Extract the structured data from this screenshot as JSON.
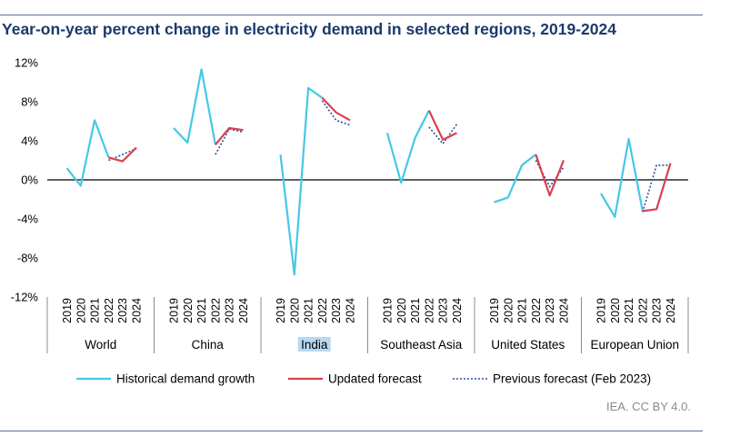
{
  "title": "Year-on-year percent change in electricity demand in selected regions, 2019-2024",
  "credit": "IEA. CC BY 4.0.",
  "colors": {
    "historical": "#45c8e6",
    "updated": "#d9414b",
    "previous": "#2c4fa3",
    "title": "#1b3a6b"
  },
  "chart_data": {
    "type": "line",
    "title": "Year-on-year percent change in electricity demand in selected regions, 2019-2024",
    "ylim": [
      -12,
      12
    ],
    "yticks": [
      "12%",
      "8%",
      "4%",
      "0%",
      "-4%",
      "-8%",
      "-12%"
    ],
    "years": [
      "2019",
      "2020",
      "2021",
      "2022",
      "2023",
      "2024"
    ],
    "highlighted_group": "India",
    "legend": [
      "Historical demand growth",
      "Updated forecast",
      "Previous forecast (Feb 2023)"
    ],
    "groups": [
      {
        "name": "World",
        "historical": [
          1.2,
          -0.6,
          6.1,
          2.3
        ],
        "updated": [
          2.3,
          1.9,
          3.3
        ],
        "previous": [
          2.0,
          2.6,
          3.2
        ]
      },
      {
        "name": "China",
        "historical": [
          5.3,
          3.8,
          11.3,
          3.6
        ],
        "updated": [
          3.6,
          5.3,
          5.1
        ],
        "previous": [
          2.6,
          5.2,
          4.9
        ]
      },
      {
        "name": "India",
        "historical": [
          2.6,
          -9.7,
          9.4,
          8.4
        ],
        "updated": [
          8.4,
          6.9,
          6.1
        ],
        "previous": [
          8.1,
          6.1,
          5.6
        ]
      },
      {
        "name": "Southeast Asia",
        "historical": [
          4.8,
          -0.3,
          4.3,
          7.1
        ],
        "updated": [
          7.1,
          4.1,
          4.8
        ],
        "previous": [
          5.4,
          3.7,
          5.7
        ]
      },
      {
        "name": "United States",
        "historical": [
          -2.3,
          -1.8,
          1.5,
          2.6
        ],
        "updated": [
          2.6,
          -1.6,
          2.0
        ],
        "previous": [
          2.0,
          -0.7,
          1.3
        ]
      },
      {
        "name": "European Union",
        "historical": [
          -1.4,
          -3.8,
          4.2,
          -3.2
        ],
        "updated": [
          -3.2,
          -3.0,
          1.7
        ],
        "previous": [
          -3.3,
          1.5,
          1.5
        ]
      }
    ]
  }
}
